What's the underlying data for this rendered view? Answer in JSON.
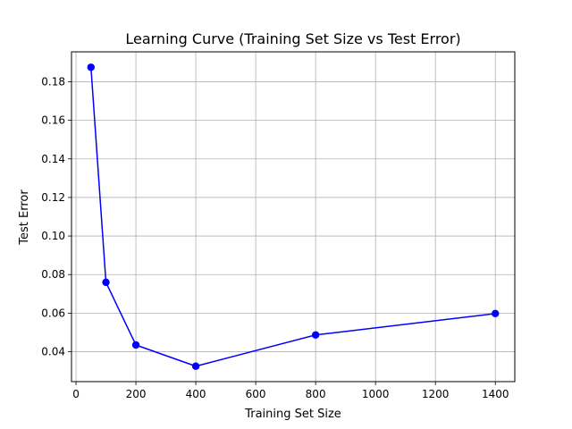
{
  "chart_data": {
    "type": "line",
    "title": "Learning Curve (Training Set Size vs Test Error)",
    "xlabel": "Training Set Size",
    "ylabel": "Test Error",
    "xlim": [
      -15,
      1465
    ],
    "ylim": [
      0.0245,
      0.1955
    ],
    "xticks": [
      0,
      200,
      400,
      600,
      800,
      1000,
      1200,
      1400
    ],
    "xtick_labels": [
      "0",
      "200",
      "400",
      "600",
      "800",
      "1000",
      "1200",
      "1400"
    ],
    "yticks": [
      0.04,
      0.06,
      0.08,
      0.1,
      0.12,
      0.14,
      0.16,
      0.18
    ],
    "ytick_labels": [
      "0.04",
      "0.06",
      "0.08",
      "0.10",
      "0.12",
      "0.14",
      "0.16",
      "0.18"
    ],
    "grid": true,
    "series": [
      {
        "color": "#0000ff",
        "marker": "circle",
        "x": [
          50,
          100,
          200,
          400,
          800,
          1400
        ],
        "y": [
          0.1875,
          0.076,
          0.0435,
          0.0325,
          0.0487,
          0.0598
        ]
      }
    ]
  }
}
